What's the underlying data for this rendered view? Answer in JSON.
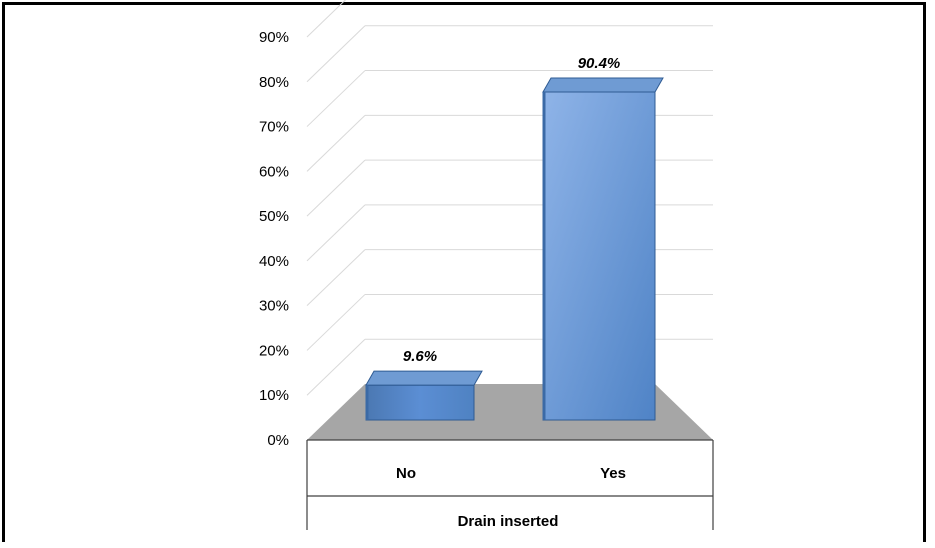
{
  "chart_data": {
    "type": "bar",
    "style": "3d-column",
    "categories": [
      "No",
      "Yes"
    ],
    "values": [
      9.6,
      90.4
    ],
    "data_labels": [
      "9.6%",
      "90.4%"
    ],
    "ylim": [
      0,
      90
    ],
    "yticks": [
      "0%",
      "10%",
      "20%",
      "30%",
      "40%",
      "50%",
      "60%",
      "70%",
      "80%",
      "90%"
    ],
    "xlabel": "Drain inserted",
    "ylabel": "",
    "title": "",
    "grid": true,
    "legend": "none",
    "colors": {
      "bar_front": "#4f81bd",
      "bar_top": "#6f9bd3",
      "bar_side": "#3b6aa6",
      "floor": "#a6a6a6",
      "grid": "#d9d9d9"
    }
  }
}
